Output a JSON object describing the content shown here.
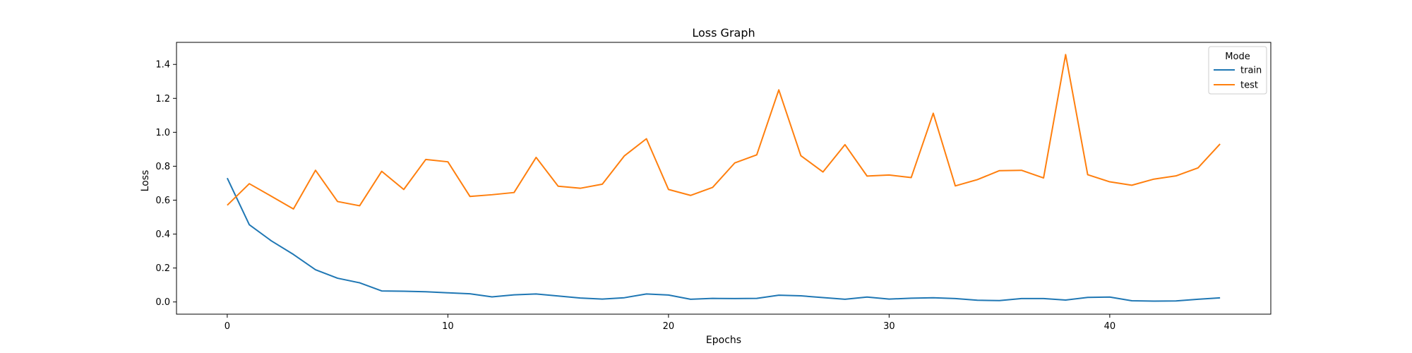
{
  "chart_data": {
    "type": "line",
    "title": "Loss Graph",
    "xlabel": "Epochs",
    "ylabel": "Loss",
    "xlim": [
      -2.3,
      47.3
    ],
    "ylim": [
      -0.072,
      1.53
    ],
    "xticks": [
      0,
      10,
      20,
      30,
      40
    ],
    "yticks": [
      0.0,
      0.2,
      0.4,
      0.6,
      0.8,
      1.0,
      1.2,
      1.4
    ],
    "grid": false,
    "legend": {
      "title": "Mode",
      "position": "top-right"
    },
    "x": [
      0,
      1,
      2,
      3,
      4,
      5,
      6,
      7,
      8,
      9,
      10,
      11,
      12,
      13,
      14,
      15,
      16,
      17,
      18,
      19,
      20,
      21,
      22,
      23,
      24,
      25,
      26,
      27,
      28,
      29,
      30,
      31,
      32,
      33,
      34,
      35,
      36,
      37,
      38,
      39,
      40,
      41,
      42,
      43,
      44,
      45
    ],
    "series": [
      {
        "name": "train",
        "color": "#1f77b4",
        "values": [
          0.73,
          0.455,
          0.36,
          0.28,
          0.19,
          0.14,
          0.113,
          0.065,
          0.063,
          0.06,
          0.054,
          0.048,
          0.03,
          0.042,
          0.047,
          0.035,
          0.023,
          0.017,
          0.025,
          0.047,
          0.041,
          0.016,
          0.021,
          0.02,
          0.021,
          0.04,
          0.036,
          0.026,
          0.016,
          0.029,
          0.017,
          0.022,
          0.025,
          0.02,
          0.01,
          0.008,
          0.02,
          0.02,
          0.011,
          0.027,
          0.029,
          0.007,
          0.005,
          0.006,
          0.016,
          0.024
        ]
      },
      {
        "name": "test",
        "color": "#ff7f0e",
        "values": [
          0.57,
          0.697,
          0.623,
          0.548,
          0.776,
          0.592,
          0.567,
          0.77,
          0.663,
          0.84,
          0.826,
          0.622,
          0.632,
          0.645,
          0.852,
          0.682,
          0.67,
          0.694,
          0.861,
          0.962,
          0.663,
          0.628,
          0.675,
          0.819,
          0.867,
          1.25,
          0.862,
          0.766,
          0.927,
          0.742,
          0.748,
          0.733,
          1.112,
          0.684,
          0.721,
          0.774,
          0.776,
          0.731,
          1.458,
          0.75,
          0.708,
          0.688,
          0.724,
          0.743,
          0.79,
          0.931
        ]
      }
    ]
  }
}
